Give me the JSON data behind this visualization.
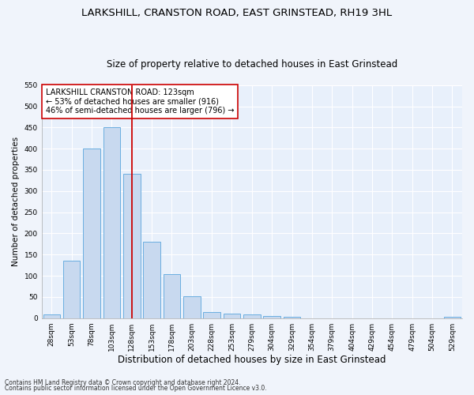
{
  "title": "LARKSHILL, CRANSTON ROAD, EAST GRINSTEAD, RH19 3HL",
  "subtitle": "Size of property relative to detached houses in East Grinstead",
  "xlabel": "Distribution of detached houses by size in East Grinstead",
  "ylabel": "Number of detached properties",
  "bar_labels": [
    "28sqm",
    "53sqm",
    "78sqm",
    "103sqm",
    "128sqm",
    "153sqm",
    "178sqm",
    "203sqm",
    "228sqm",
    "253sqm",
    "279sqm",
    "304sqm",
    "329sqm",
    "354sqm",
    "379sqm",
    "404sqm",
    "429sqm",
    "454sqm",
    "479sqm",
    "504sqm",
    "529sqm"
  ],
  "bar_values": [
    8,
    135,
    400,
    450,
    340,
    180,
    103,
    52,
    15,
    10,
    8,
    5,
    3,
    0,
    0,
    0,
    0,
    0,
    0,
    0,
    3
  ],
  "bar_color": "#c8d9ef",
  "bar_edge_color": "#6aaee0",
  "vline_index": 4,
  "vline_color": "#cc0000",
  "annotation_title": "LARKSHILL CRANSTON ROAD: 123sqm",
  "annotation_line1": "← 53% of detached houses are smaller (916)",
  "annotation_line2": "46% of semi-detached houses are larger (796) →",
  "annotation_box_color": "#ffffff",
  "annotation_box_edge": "#cc0000",
  "ylim": [
    0,
    550
  ],
  "yticks": [
    0,
    50,
    100,
    150,
    200,
    250,
    300,
    350,
    400,
    450,
    500,
    550
  ],
  "footnote1": "Contains HM Land Registry data © Crown copyright and database right 2024.",
  "footnote2": "Contains public sector information licensed under the Open Government Licence v3.0.",
  "bg_color": "#e8f0fb",
  "fig_color": "#f0f4fb",
  "grid_color": "#ffffff",
  "title_fontsize": 9.5,
  "subtitle_fontsize": 8.5,
  "ylabel_fontsize": 7.5,
  "xlabel_fontsize": 8.5,
  "tick_fontsize": 6.5,
  "annot_fontsize": 7,
  "footnote_fontsize": 5.5
}
